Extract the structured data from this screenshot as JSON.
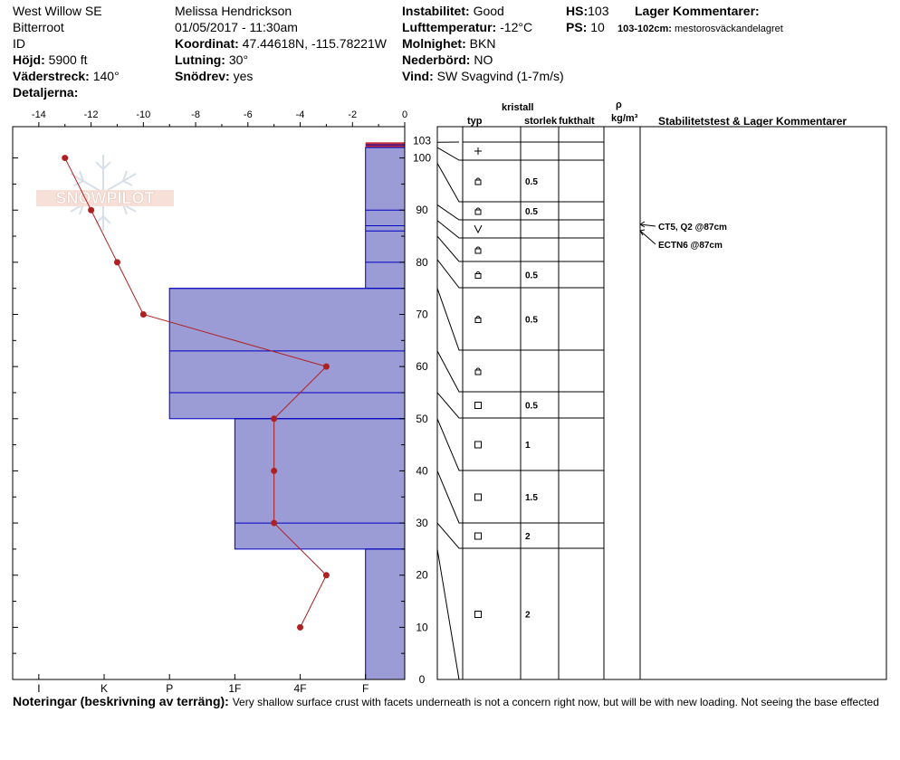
{
  "header": {
    "location": "West Willow SE",
    "region": "Bitterroot",
    "state": "ID",
    "elevation_label": "Höjd:",
    "elevation_value": "5900 ft",
    "aspect_label": "Väderstreck:",
    "aspect_value": "140°",
    "details_label": "Detaljerna:",
    "observer": "Melissa Hendrickson",
    "datetime": "01/05/2017 - 11:30am",
    "coord_label": "Koordinat:",
    "coord_value": "47.44618N, -115.78221W",
    "slope_label": "Lutning:",
    "slope_value": "30°",
    "drift_label": "Snödrev:",
    "drift_value": "yes",
    "instability_label": "Instabilitet:",
    "instability_value": "Good",
    "airtemp_label": "Lufttemperatur:",
    "airtemp_value": "-12°C",
    "cloud_label": "Molnighet:",
    "cloud_value": "BKN",
    "precip_label": "Nederbörd:",
    "precip_value": "NO",
    "wind_label": "Vind:",
    "wind_value": "SW Svagvind (1-7m/s)",
    "hs_label": "HS:",
    "hs_value": "103",
    "ps_label": "PS:",
    "ps_value": "10",
    "layer_comments_label": "Lager Kommentarer:",
    "layer_comment": "103-102cm:",
    "layer_comment_text": "mestorosväckandelagret"
  },
  "watermark": "SNOWPILOT",
  "columns": {
    "typ": "typ",
    "kristall": "kristall",
    "storlek": "storlek",
    "fukthalt": "fukthalt",
    "rho": "ρ",
    "density_unit": "kg/m³",
    "stability": "Stabilitetstest & Lager Kommentarer"
  },
  "notes": {
    "label": "Noteringar (beskrivning av terräng):",
    "text": "Very shallow surface crust with facets underneath is not a concern right now, but will be with new loading.  Not seeing the base effected"
  },
  "stability_tests": [
    {
      "text": "CT5, Q2 @87cm",
      "depth": 87
    },
    {
      "text": "ECTN6 @87cm",
      "depth": 87
    }
  ],
  "chart_data": {
    "type": "snow-profile",
    "temperature_axis": {
      "range": [
        -15,
        0
      ],
      "ticks": [
        "-14",
        "-12",
        "-10",
        "-8",
        "-6",
        "-4",
        "-2",
        "0"
      ],
      "tick_values": [
        -14,
        -12,
        -10,
        -8,
        -6,
        -4,
        -2,
        0
      ]
    },
    "height_axis": {
      "range": [
        0,
        106
      ],
      "ticks": [
        "0",
        "10",
        "20",
        "30",
        "40",
        "50",
        "60",
        "70",
        "80",
        "90",
        "100"
      ],
      "tick_values": [
        0,
        10,
        20,
        30,
        40,
        50,
        60,
        70,
        80,
        90,
        100
      ],
      "hs_label": "103"
    },
    "hardness_axis": {
      "labels": [
        "I",
        "K",
        "P",
        "1F",
        "F",
        "4F"
      ],
      "label_values": [
        14,
        11.5,
        9,
        6.5,
        1.5,
        4
      ]
    },
    "temperature_profile": [
      {
        "height": 100,
        "temp": -13
      },
      {
        "height": 90,
        "temp": -12
      },
      {
        "height": 80,
        "temp": -11
      },
      {
        "height": 70,
        "temp": -10
      },
      {
        "height": 60,
        "temp": -3
      },
      {
        "height": 50,
        "temp": -5
      },
      {
        "height": 40,
        "temp": -5
      },
      {
        "height": 30,
        "temp": -5
      },
      {
        "height": 20,
        "temp": -3
      },
      {
        "height": 10,
        "temp": -4
      }
    ],
    "hardness_profile": [
      {
        "bottom": 75,
        "top": 102,
        "hardness": "F",
        "value": 1.5
      },
      {
        "bottom": 50,
        "top": 75,
        "hardness": "P",
        "value": 9
      },
      {
        "bottom": 25,
        "top": 50,
        "hardness": "1F",
        "value": 6.5
      },
      {
        "bottom": 0,
        "top": 25,
        "hardness": "F",
        "value": 1.5
      }
    ],
    "layer_boundaries": [
      102.5,
      102,
      90,
      87,
      86,
      80,
      75,
      63,
      55,
      50,
      30,
      25
    ],
    "surface_layer": {
      "bottom": 102,
      "top": 103,
      "color": "#c0303a"
    },
    "layers": [
      {
        "top": 103,
        "bottom": 102,
        "grain": "",
        "size": ""
      },
      {
        "top": 102,
        "bottom": 99,
        "grain": "+",
        "size": ""
      },
      {
        "top": 99,
        "bottom": 91,
        "grain": "lock",
        "size": "0.5"
      },
      {
        "top": 91,
        "bottom": 88,
        "grain": "lock",
        "size": "0.5"
      },
      {
        "top": 88,
        "bottom": 85,
        "grain": "V",
        "size": ""
      },
      {
        "top": 85,
        "bottom": 80.5,
        "grain": "lock",
        "size": ""
      },
      {
        "top": 80.5,
        "bottom": 75,
        "grain": "lock",
        "size": "0.5"
      },
      {
        "top": 75,
        "bottom": 63,
        "grain": "lock",
        "size": "0.5"
      },
      {
        "top": 63,
        "bottom": 55,
        "grain": "lock",
        "size": ""
      },
      {
        "top": 55,
        "bottom": 50,
        "grain": "square",
        "size": "0.5"
      },
      {
        "top": 50,
        "bottom": 40,
        "grain": "square",
        "size": "1"
      },
      {
        "top": 40,
        "bottom": 30,
        "grain": "square",
        "size": "1.5"
      },
      {
        "top": 30,
        "bottom": 25,
        "grain": "square",
        "size": "2"
      },
      {
        "top": 25,
        "bottom": 0,
        "grain": "square",
        "size": "2"
      }
    ],
    "colors": {
      "hardness_fill": "#9b9bd6",
      "hardness_line": "#0000c0",
      "temperature": "#b02020",
      "surface": "#c0303a"
    }
  }
}
